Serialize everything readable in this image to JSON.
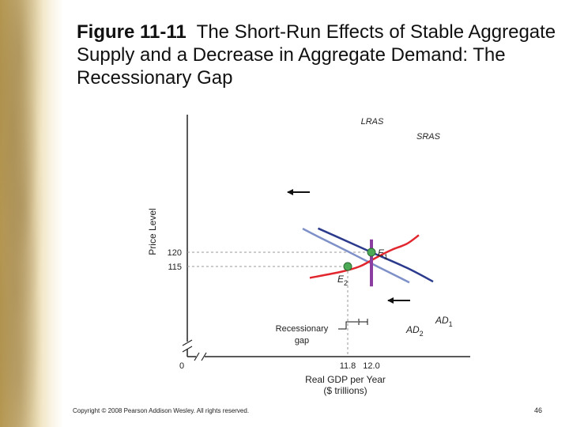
{
  "slide": {
    "figure_number": "Figure 11-11",
    "title": "The Short-Run Effects of Stable Aggregate Supply and a Decrease in Aggregate Demand: The Recessionary Gap",
    "copyright": "Copyright © 2008 Pearson Addison Wesley. All rights reserved.",
    "page_number": "46"
  },
  "chart_data": {
    "type": "line",
    "xlabel": [
      "Real GDP per Year",
      "($ trillions)"
    ],
    "ylabel": "Price Level",
    "x_ticks": [
      "11.8",
      "12.0"
    ],
    "y_ticks": [
      "120",
      "115"
    ],
    "origin_label": "0",
    "colors": {
      "lras": "#8c3ea0",
      "sras": "#e2262e",
      "ad1": "#2b3a8c",
      "ad2": "#7e90c8",
      "equilibrium": "#4caa56"
    },
    "series": [
      {
        "name": "LRAS",
        "label_main": "LRAS",
        "label_sub": "",
        "x": [
          12.0,
          12.0
        ],
        "y": [
          124.5,
          108
        ]
      },
      {
        "name": "SRAS",
        "label_main": "SRAS",
        "label_sub": "",
        "x": [
          11.48,
          11.75,
          11.9,
          12.0,
          12.08,
          12.18,
          12.3,
          12.4
        ],
        "y": [
          111.0,
          113.2,
          115.0,
          117.2,
          119.0,
          121.0,
          123.0,
          126.0
        ]
      },
      {
        "name": "AD1",
        "label_main": "AD",
        "label_sub": "1",
        "x": [
          11.55,
          11.7,
          12.0,
          12.3,
          12.52
        ],
        "y": [
          128.4,
          125.6,
          120.0,
          114.5,
          109.7
        ]
      },
      {
        "name": "AD2",
        "label_main": "AD",
        "label_sub": "2",
        "x": [
          11.42,
          11.55,
          11.8,
          12.05,
          12.32
        ],
        "y": [
          128.3,
          125.5,
          120.3,
          115.0,
          109.4
        ]
      }
    ],
    "points": [
      {
        "name": "E1",
        "label_main": "E",
        "label_sub": "1",
        "x": 12.0,
        "y": 120
      },
      {
        "name": "E2",
        "label_main": "E",
        "label_sub": "2",
        "x": 11.8,
        "y": 115
      }
    ],
    "annotations": {
      "gap_label": [
        "Recessionary",
        "gap"
      ],
      "shift_arrows": "leftward"
    }
  }
}
